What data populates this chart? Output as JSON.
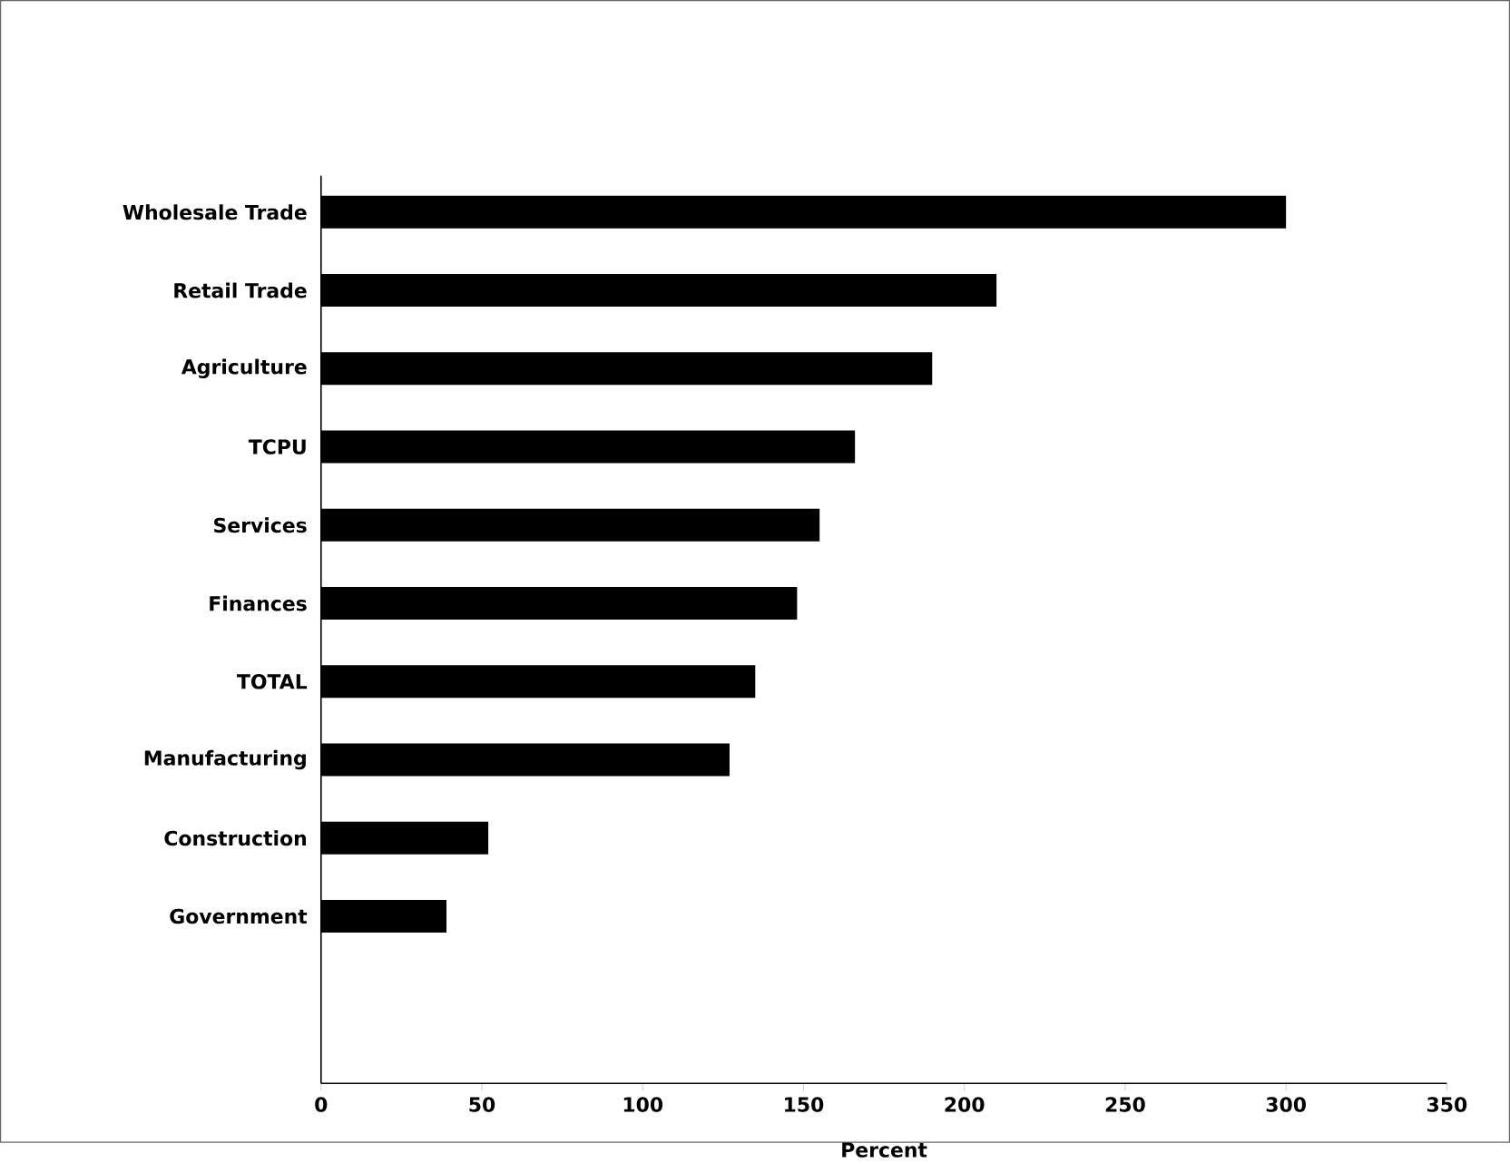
{
  "chart_data": {
    "type": "bar",
    "orientation": "horizontal",
    "xlabel": "Percent",
    "categories": [
      "Wholesale Trade",
      "Retail Trade",
      "Agriculture",
      "TCPU",
      "Services",
      "Finances",
      "TOTAL",
      "Manufacturing",
      "Construction",
      "Government"
    ],
    "values": [
      300,
      210,
      190,
      166,
      155,
      148,
      135,
      127,
      52,
      39
    ],
    "color": "#000000",
    "xlim": [
      0,
      350
    ],
    "xticks": [
      0,
      50,
      100,
      150,
      200,
      250,
      300,
      350
    ]
  }
}
